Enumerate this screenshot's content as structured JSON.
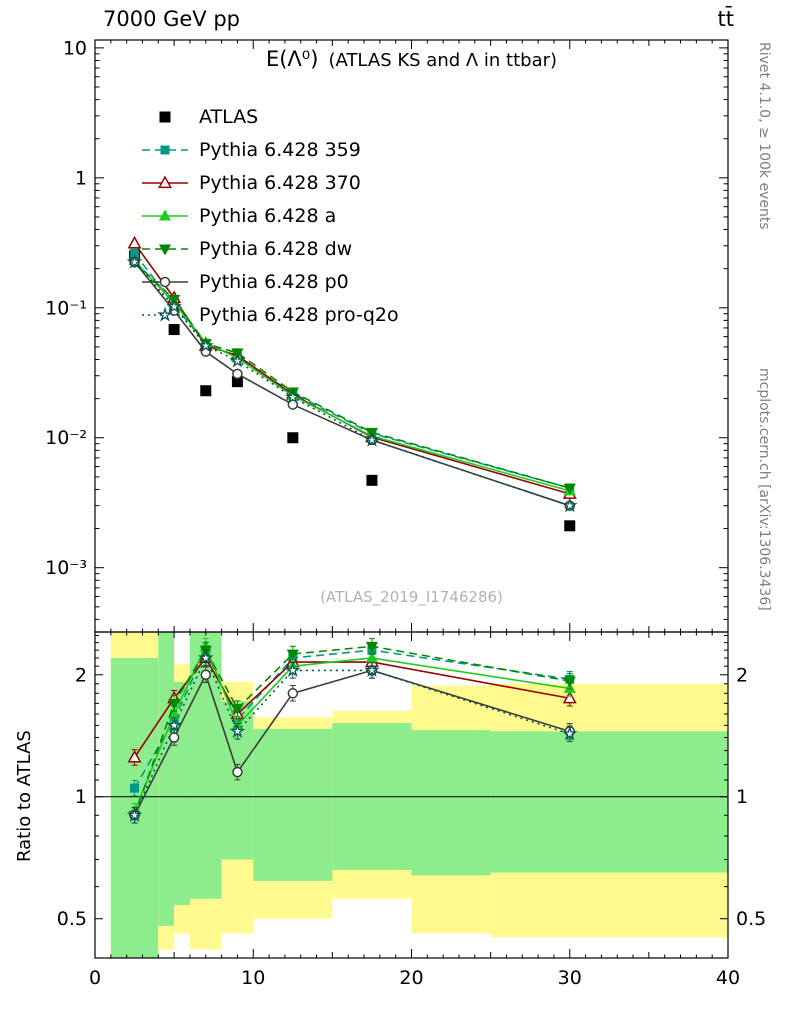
{
  "header": {
    "left": "7000 GeV pp",
    "right": "tt̄"
  },
  "plot_title": {
    "formula": "E(Λ⁰)",
    "description": "(ATLAS KS and Λ in ttbar)"
  },
  "watermark": "(ATLAS_2019_I1746286)",
  "credits": {
    "rivet": "Rivet 4.1.0, ≥ 100k events",
    "mcplots": "mcplots.cern.ch [arXiv:1306.3436]"
  },
  "theme": {
    "band_yellow": "#fff98e",
    "band_green": "#8ded8d",
    "frame": "#000000",
    "credit_gray": "#808080",
    "watermark_gray": "#b2b2b2"
  },
  "chart_data": {
    "type": "line",
    "title": "E(Λ⁰) (ATLAS KS and Λ in ttbar)",
    "xlabel": "",
    "xlim": [
      0,
      40
    ],
    "x_ticks": [
      0,
      10,
      20,
      30,
      40
    ],
    "x": [
      2.5,
      5,
      7,
      9,
      12.5,
      17.5,
      30
    ],
    "main_panel": {
      "ylog": true,
      "ylim": [
        0.00032,
        11.5
      ],
      "y_ticks": [
        {
          "value": 10,
          "label": "10"
        },
        {
          "value": 1,
          "label": "1"
        },
        {
          "value": 0.1,
          "label": "10⁻¹"
        },
        {
          "value": 0.01,
          "label": "10⁻²"
        },
        {
          "value": 0.001,
          "label": "10⁻³"
        }
      ]
    },
    "ratio_panel": {
      "ylabel": "Ratio to ATLAS",
      "ylog": true,
      "ylim": [
        0.4,
        2.55
      ],
      "reference_line": 1,
      "y_ticks": [
        {
          "value": 2,
          "label": "2"
        },
        {
          "value": 1,
          "label": "1"
        },
        {
          "value": 0.5,
          "label": "0.5"
        }
      ]
    },
    "series": [
      {
        "name": "ATLAS",
        "color": "#000000",
        "line": "none",
        "marker": "square-filled",
        "marker_size": 5.5,
        "values": [
          0.25,
          0.068,
          0.023,
          0.027,
          0.01,
          0.0047,
          0.0021
        ]
      },
      {
        "name": "Pythia 6.428 359",
        "color": "#009988",
        "line": "dashed",
        "marker": "square-filled",
        "values": [
          0.263,
          0.105,
          0.053,
          0.042,
          0.022,
          0.0108,
          0.0041
        ],
        "ratio": [
          1.05,
          1.55,
          2.3,
          1.55,
          2.2,
          2.3,
          1.95
        ]
      },
      {
        "name": "Pythia 6.428 370",
        "color": "#990000",
        "line": "solid",
        "marker": "triangle-open",
        "values": [
          0.313,
          0.119,
          0.051,
          0.043,
          0.0215,
          0.0101,
          0.0037
        ],
        "ratio": [
          1.25,
          1.75,
          2.2,
          1.6,
          2.15,
          2.15,
          1.75
        ]
      },
      {
        "name": "Pythia 6.428 a",
        "color": "#1fcc1f",
        "line": "solid",
        "marker": "triangle-filled",
        "values": [
          0.23,
          0.109,
          0.054,
          0.041,
          0.021,
          0.0103,
          0.0039
        ],
        "ratio": [
          0.92,
          1.6,
          2.35,
          1.5,
          2.1,
          2.2,
          1.85
        ]
      },
      {
        "name": "Pythia 6.428 dw",
        "color": "#008800",
        "line": "dashed",
        "marker": "triangle-down-filled",
        "values": [
          0.225,
          0.116,
          0.053,
          0.045,
          0.0225,
          0.011,
          0.0041
        ],
        "ratio": [
          0.9,
          1.7,
          2.3,
          1.65,
          2.25,
          2.35,
          1.93
        ]
      },
      {
        "name": "Pythia 6.428 p0",
        "color": "#3c3c3c",
        "line": "solid",
        "marker": "circle-open",
        "values": [
          0.225,
          0.095,
          0.046,
          0.031,
          0.018,
          0.0096,
          0.003
        ],
        "ratio": [
          0.9,
          1.4,
          2.0,
          1.15,
          1.8,
          2.05,
          1.45
        ]
      },
      {
        "name": "Pythia 6.428 pro-q2o",
        "color": "#005555",
        "line": "dotted",
        "marker": "star-open",
        "values": [
          0.225,
          0.102,
          0.051,
          0.039,
          0.0205,
          0.0096,
          0.003
        ],
        "ratio": [
          0.9,
          1.5,
          2.2,
          1.45,
          2.05,
          2.05,
          1.43
        ]
      }
    ],
    "uncertainty_bands": [
      {
        "x0": 1,
        "x1": 4,
        "yellow": [
          0.4,
          2.55
        ],
        "green": [
          0.4,
          2.2
        ]
      },
      {
        "x0": 4,
        "x1": 5,
        "yellow": [
          0.42,
          2.55
        ],
        "green": [
          0.48,
          2.55
        ]
      },
      {
        "x0": 5,
        "x1": 6,
        "yellow": [
          0.46,
          2.12
        ],
        "green": [
          0.54,
          1.92
        ]
      },
      {
        "x0": 6,
        "x1": 8,
        "yellow": [
          0.42,
          2.55
        ],
        "green": [
          0.56,
          2.55
        ]
      },
      {
        "x0": 8,
        "x1": 10,
        "yellow": [
          0.46,
          1.92
        ],
        "green": [
          0.7,
          1.72
        ]
      },
      {
        "x0": 10,
        "x1": 15,
        "yellow": [
          0.5,
          1.57
        ],
        "green": [
          0.62,
          1.47
        ]
      },
      {
        "x0": 15,
        "x1": 20,
        "yellow": [
          0.56,
          1.63
        ],
        "green": [
          0.66,
          1.52
        ]
      },
      {
        "x0": 20,
        "x1": 25,
        "yellow": [
          0.46,
          1.88
        ],
        "green": [
          0.64,
          1.46
        ]
      },
      {
        "x0": 25,
        "x1": 40,
        "yellow": [
          0.45,
          1.9
        ],
        "green": [
          0.65,
          1.45
        ]
      }
    ]
  }
}
